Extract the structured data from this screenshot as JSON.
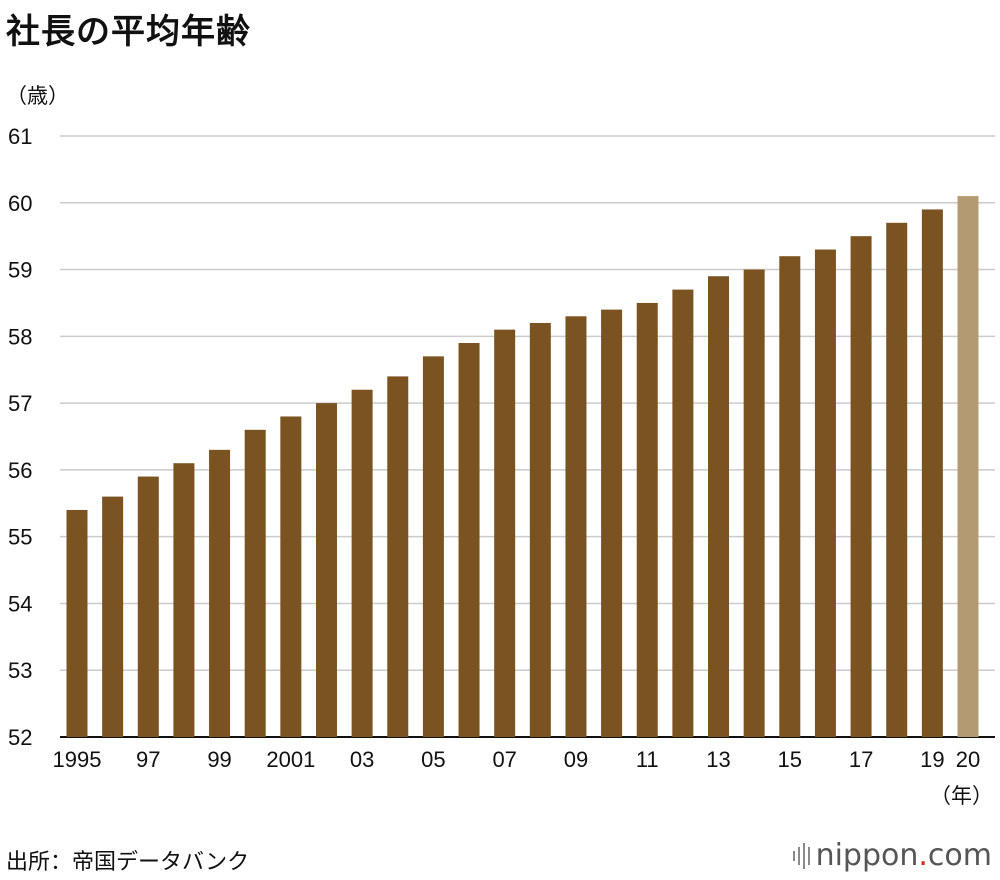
{
  "title": "社長の平均年齢",
  "source": "出所：帝国データバンク",
  "logo": {
    "main": "nippon",
    "dot": ".",
    "suffix": "com"
  },
  "colors": {
    "bar": "#7a5320",
    "bar_highlight": "#b39a73",
    "grid": "#cccccc"
  },
  "chart_data": {
    "type": "bar",
    "title": "社長の平均年齢",
    "ylabel": "（歳）",
    "xlabel": "（年）",
    "ylim": [
      52,
      61
    ],
    "yticks": [
      52,
      53,
      54,
      55,
      56,
      57,
      58,
      59,
      60,
      61
    ],
    "grid": true,
    "categories": [
      "1995",
      "1996",
      "1997",
      "1998",
      "1999",
      "2000",
      "2001",
      "2002",
      "2003",
      "2004",
      "2005",
      "2006",
      "2007",
      "2008",
      "2009",
      "2010",
      "2011",
      "2012",
      "2013",
      "2014",
      "2015",
      "2016",
      "2017",
      "2018",
      "2019",
      "2020"
    ],
    "category_labels": [
      "1995",
      "",
      "97",
      "",
      "99",
      "",
      "2001",
      "",
      "03",
      "",
      "05",
      "",
      "07",
      "",
      "09",
      "",
      "11",
      "",
      "13",
      "",
      "15",
      "",
      "17",
      "",
      "19",
      "20"
    ],
    "values": [
      55.4,
      55.6,
      55.9,
      56.1,
      56.3,
      56.6,
      56.8,
      57.0,
      57.2,
      57.4,
      57.7,
      57.9,
      58.1,
      58.2,
      58.3,
      58.4,
      58.5,
      58.7,
      58.9,
      59.0,
      59.2,
      59.3,
      59.5,
      59.7,
      59.9,
      60.1
    ],
    "highlight_index": 25
  }
}
